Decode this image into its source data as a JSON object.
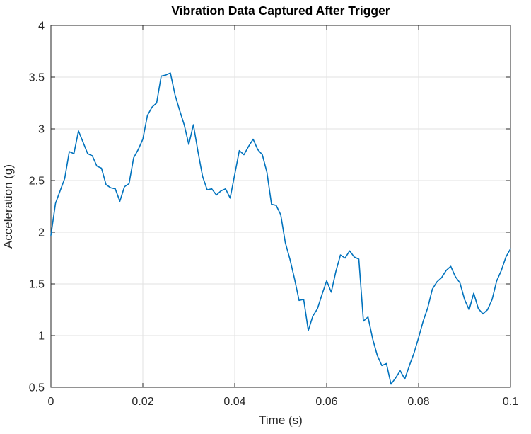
{
  "figure": {
    "background": "#ffffff"
  },
  "chart_data": {
    "type": "line",
    "title": "Vibration Data Captured After Trigger",
    "xlabel": "Time (s)",
    "ylabel": "Acceleration (g)",
    "xlim": [
      0,
      0.1
    ],
    "ylim": [
      0.5,
      4
    ],
    "xticks": [
      0,
      0.02,
      0.04,
      0.06,
      0.08,
      0.1
    ],
    "xtick_labels": [
      "0",
      "0.02",
      "0.04",
      "0.06",
      "0.08",
      "0.1"
    ],
    "yticks": [
      0.5,
      1,
      1.5,
      2,
      2.5,
      3,
      3.5,
      4
    ],
    "ytick_labels": [
      "0.5",
      "1",
      "1.5",
      "2",
      "2.5",
      "3",
      "3.5",
      "4"
    ],
    "grid": true,
    "legend": null,
    "line_color": "#0072BD",
    "axis_color": "#262626",
    "grid_color": "#e2e2e2",
    "x_start": 0,
    "x_interval": 0.001,
    "values": [
      1.97,
      2.28,
      2.4,
      2.52,
      2.78,
      2.76,
      2.98,
      2.87,
      2.76,
      2.74,
      2.64,
      2.62,
      2.46,
      2.43,
      2.42,
      2.3,
      2.44,
      2.47,
      2.72,
      2.8,
      2.9,
      3.13,
      3.21,
      3.25,
      3.51,
      3.52,
      3.54,
      3.33,
      3.18,
      3.04,
      2.85,
      3.04,
      2.78,
      2.54,
      2.41,
      2.42,
      2.36,
      2.4,
      2.42,
      2.33,
      2.56,
      2.79,
      2.75,
      2.83,
      2.9,
      2.8,
      2.75,
      2.58,
      2.27,
      2.26,
      2.17,
      1.9,
      1.74,
      1.55,
      1.34,
      1.35,
      1.05,
      1.19,
      1.26,
      1.4,
      1.53,
      1.42,
      1.62,
      1.78,
      1.75,
      1.82,
      1.76,
      1.74,
      1.14,
      1.18,
      0.97,
      0.81,
      0.71,
      0.73,
      0.53,
      0.59,
      0.66,
      0.58,
      0.71,
      0.83,
      0.98,
      1.14,
      1.27,
      1.45,
      1.52,
      1.56,
      1.63,
      1.67,
      1.57,
      1.51,
      1.35,
      1.25,
      1.41,
      1.26,
      1.21,
      1.25,
      1.35,
      1.53,
      1.63,
      1.76,
      1.84
    ]
  }
}
